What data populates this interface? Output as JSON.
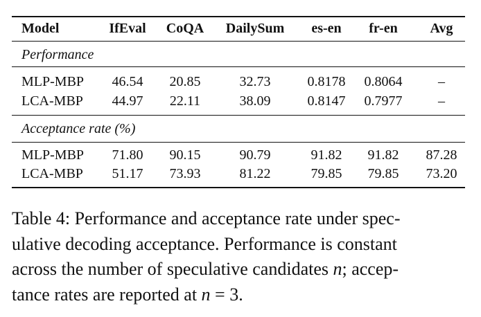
{
  "table": {
    "columns": [
      "Model",
      "IfEval",
      "CoQA",
      "DailySum",
      "es-en",
      "fr-en",
      "Avg"
    ],
    "sections": [
      {
        "title": "Performance",
        "rows": [
          {
            "model": "MLP-MBP",
            "values": [
              "46.54",
              "20.85",
              "32.73",
              "0.8178",
              "0.8064",
              "–"
            ]
          },
          {
            "model": "LCA-MBP",
            "values": [
              "44.97",
              "22.11",
              "38.09",
              "0.8147",
              "0.7977",
              "–"
            ]
          }
        ]
      },
      {
        "title": "Acceptance rate (%)",
        "rows": [
          {
            "model": "MLP-MBP",
            "values": [
              "71.80",
              "90.15",
              "90.79",
              "91.82",
              "91.82",
              "87.28"
            ]
          },
          {
            "model": "LCA-MBP",
            "values": [
              "51.17",
              "73.93",
              "81.22",
              "79.85",
              "79.85",
              "73.20"
            ]
          }
        ]
      }
    ]
  },
  "caption": {
    "line1": "Table 4: Performance and acceptance rate under spec-",
    "line2": "ulative decoding acceptance. Performance is constant",
    "line3a": "across the number of speculative candidates ",
    "line3var": "n",
    "line3b": "; accep-",
    "line4a": "tance rates are reported at ",
    "line4math": "n",
    "line4b": " = 3."
  }
}
